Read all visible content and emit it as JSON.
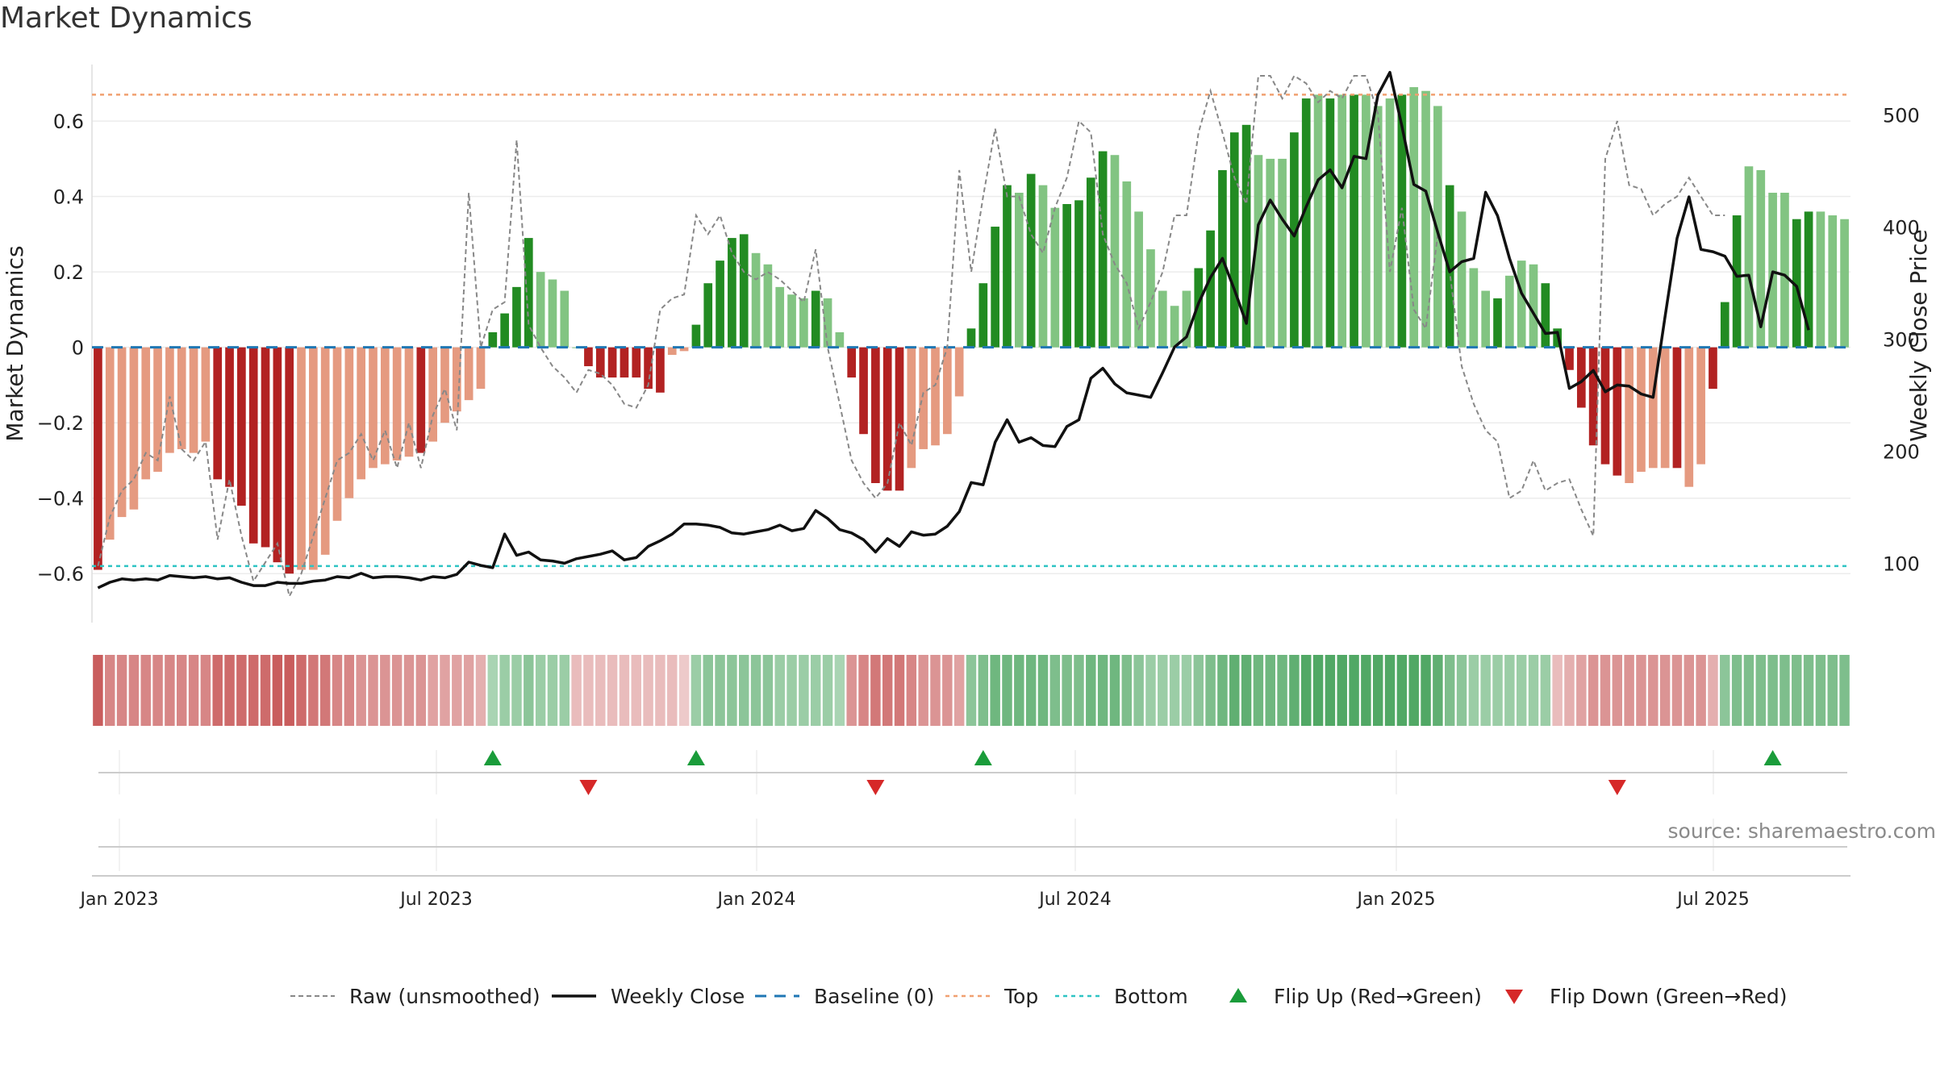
{
  "title": "Market Dynamics",
  "source": "source: sharemaestro.com",
  "colors": {
    "strong_green": "#228b22",
    "light_green": "#82c482",
    "strong_red": "#b22222",
    "light_red": "#e59a80",
    "close_line": "#111111",
    "raw_line": "#888888",
    "baseline": "#1f77b4",
    "top_line": "#f0a070",
    "bottom_line": "#2ec4c4",
    "flip_up": "#1a9c3a",
    "flip_down": "#d62828"
  },
  "chart_data": {
    "type": "bar",
    "ylabel": "Market Dynamics",
    "y2label": "Weekly Close Price",
    "ylim": [
      -0.73,
      0.75
    ],
    "y2lim": [
      47,
      545
    ],
    "yticks": [
      -0.6,
      -0.4,
      -0.2,
      0,
      0.2,
      0.4,
      0.6
    ],
    "ytick_labels": [
      "−0.6",
      "−0.4",
      "−0.2",
      "0",
      "0.2",
      "0.4",
      "0.6"
    ],
    "y2ticks": [
      100,
      200,
      300,
      400,
      500
    ],
    "y2tick_labels": [
      "100",
      "200",
      "300",
      "400",
      "500"
    ],
    "top_level": 0.67,
    "bottom_level": -0.58,
    "baseline_level": 0,
    "xticks": [
      "Jan 2023",
      "Jul 2023",
      "Jan 2024",
      "Jul 2024",
      "Jan 2025",
      "Jul 2025"
    ],
    "grid": "on",
    "legend_position": "bottom",
    "bar_values": [
      -0.59,
      -0.51,
      -0.45,
      -0.43,
      -0.35,
      -0.33,
      -0.28,
      -0.27,
      -0.28,
      -0.25,
      -0.35,
      -0.37,
      -0.42,
      -0.52,
      -0.53,
      -0.57,
      -0.6,
      -0.59,
      -0.59,
      -0.55,
      -0.46,
      -0.4,
      -0.35,
      -0.32,
      -0.31,
      -0.3,
      -0.29,
      -0.28,
      -0.25,
      -0.2,
      -0.17,
      -0.14,
      -0.11,
      0.04,
      0.09,
      0.16,
      0.29,
      0.2,
      0.18,
      0.15,
      0.0,
      -0.05,
      -0.08,
      -0.08,
      -0.08,
      -0.08,
      -0.11,
      -0.12,
      -0.02,
      -0.01,
      0.06,
      0.17,
      0.23,
      0.29,
      0.3,
      0.25,
      0.22,
      0.16,
      0.14,
      0.13,
      0.15,
      0.13,
      0.04,
      -0.08,
      -0.23,
      -0.36,
      -0.38,
      -0.38,
      -0.32,
      -0.27,
      -0.26,
      -0.23,
      -0.13,
      0.05,
      0.17,
      0.32,
      0.43,
      0.41,
      0.46,
      0.43,
      0.37,
      0.38,
      0.39,
      0.45,
      0.52,
      0.51,
      0.44,
      0.36,
      0.26,
      0.15,
      0.11,
      0.15,
      0.21,
      0.31,
      0.47,
      0.57,
      0.59,
      0.51,
      0.5,
      0.5,
      0.57,
      0.66,
      0.67,
      0.66,
      0.67,
      0.67,
      0.67,
      0.64,
      0.66,
      0.67,
      0.69,
      0.68,
      0.64,
      0.43,
      0.36,
      0.21,
      0.15,
      0.13,
      0.19,
      0.23,
      0.22,
      0.17,
      0.05,
      -0.06,
      -0.16,
      -0.26,
      -0.31,
      -0.34,
      -0.36,
      -0.33,
      -0.32,
      -0.32,
      -0.32,
      -0.37,
      -0.31,
      -0.11,
      0.12,
      0.35,
      0.48,
      0.47,
      0.41,
      0.41,
      0.34,
      0.36,
      0.36,
      0.35,
      0.34
    ],
    "bar_shade": [
      "strong",
      "light",
      "light",
      "light",
      "light",
      "light",
      "light",
      "light",
      "light",
      "light",
      "strong",
      "strong",
      "strong",
      "strong",
      "strong",
      "strong",
      "strong",
      "light",
      "light",
      "light",
      "light",
      "light",
      "light",
      "light",
      "light",
      "light",
      "light",
      "strong",
      "light",
      "light",
      "light",
      "light",
      "light",
      "strong",
      "strong",
      "strong",
      "strong",
      "light",
      "light",
      "light",
      "light",
      "strong",
      "strong",
      "strong",
      "strong",
      "strong",
      "strong",
      "strong",
      "light",
      "light",
      "strong",
      "strong",
      "strong",
      "strong",
      "strong",
      "light",
      "light",
      "light",
      "light",
      "light",
      "strong",
      "light",
      "light",
      "strong",
      "strong",
      "strong",
      "strong",
      "strong",
      "light",
      "light",
      "light",
      "light",
      "light",
      "strong",
      "strong",
      "strong",
      "strong",
      "light",
      "strong",
      "light",
      "light",
      "strong",
      "strong",
      "strong",
      "strong",
      "light",
      "light",
      "light",
      "light",
      "light",
      "light",
      "light",
      "strong",
      "strong",
      "strong",
      "strong",
      "strong",
      "light",
      "light",
      "light",
      "strong",
      "strong",
      "light",
      "strong",
      "light",
      "strong",
      "light",
      "light",
      "light",
      "strong",
      "light",
      "light",
      "light",
      "strong",
      "light",
      "light",
      "light",
      "strong",
      "light",
      "light",
      "light",
      "strong",
      "strong",
      "strong",
      "strong",
      "strong",
      "strong",
      "strong",
      "light",
      "light",
      "light",
      "light",
      "strong",
      "light",
      "light",
      "strong",
      "strong",
      "strong",
      "light",
      "light",
      "light",
      "light",
      "strong",
      "strong",
      "light",
      "light"
    ],
    "raw_values": [
      -0.58,
      -0.45,
      -0.38,
      -0.35,
      -0.28,
      -0.3,
      -0.13,
      -0.27,
      -0.3,
      -0.25,
      -0.51,
      -0.35,
      -0.5,
      -0.62,
      -0.57,
      -0.52,
      -0.66,
      -0.6,
      -0.5,
      -0.4,
      -0.3,
      -0.28,
      -0.23,
      -0.3,
      -0.22,
      -0.32,
      -0.2,
      -0.32,
      -0.18,
      -0.11,
      -0.22,
      0.41,
      0.0,
      0.1,
      0.12,
      0.55,
      0.06,
      0.0,
      -0.05,
      -0.08,
      -0.12,
      -0.06,
      -0.07,
      -0.1,
      -0.15,
      -0.16,
      -0.1,
      0.1,
      0.13,
      0.14,
      0.35,
      0.3,
      0.35,
      0.25,
      0.2,
      0.18,
      0.2,
      0.18,
      0.15,
      0.12,
      0.26,
      0.0,
      -0.15,
      -0.3,
      -0.36,
      -0.4,
      -0.36,
      -0.2,
      -0.26,
      -0.12,
      -0.1,
      0.0,
      0.47,
      0.2,
      0.4,
      0.58,
      0.4,
      0.4,
      0.3,
      0.25,
      0.37,
      0.45,
      0.6,
      0.57,
      0.3,
      0.22,
      0.17,
      0.05,
      0.12,
      0.2,
      0.35,
      0.35,
      0.57,
      0.68,
      0.57,
      0.45,
      0.38,
      0.72,
      0.72,
      0.66,
      0.72,
      0.7,
      0.65,
      0.68,
      0.66,
      0.72,
      0.72,
      0.62,
      0.2,
      0.37,
      0.1,
      0.05,
      0.3,
      0.2,
      -0.05,
      -0.15,
      -0.22,
      -0.25,
      -0.4,
      -0.38,
      -0.3,
      -0.38,
      -0.36,
      -0.35,
      -0.43,
      -0.5,
      0.5,
      0.6,
      0.43,
      0.42,
      0.35,
      0.38,
      0.4,
      0.45,
      0.4,
      0.35,
      0.35
    ],
    "close_values": [
      78,
      83,
      86,
      85,
      86,
      85,
      89,
      88,
      87,
      88,
      86,
      87,
      83,
      80,
      80,
      83,
      82,
      82,
      84,
      85,
      88,
      87,
      91,
      87,
      88,
      88,
      87,
      85,
      88,
      87,
      90,
      101,
      98,
      96,
      126,
      107,
      110,
      103,
      102,
      100,
      104,
      106,
      108,
      111,
      103,
      105,
      115,
      120,
      126,
      135,
      135,
      134,
      132,
      127,
      126,
      128,
      130,
      134,
      129,
      131,
      147,
      140,
      130,
      127,
      121,
      110,
      122,
      115,
      128,
      125,
      126,
      133,
      146,
      172,
      170,
      208,
      228,
      208,
      212,
      205,
      204,
      222,
      228,
      265,
      274,
      260,
      252,
      250,
      248,
      270,
      293,
      302,
      332,
      355,
      372,
      344,
      314,
      402,
      424,
      407,
      392,
      418,
      442,
      451,
      435,
      463,
      461,
      518,
      538,
      490,
      438,
      432,
      395,
      360,
      369,
      372,
      431,
      410,
      372,
      341,
      323,
      305,
      306,
      256,
      262,
      272,
      253,
      259,
      258,
      251,
      248,
      320,
      390,
      427,
      380,
      378,
      374,
      356,
      357,
      311,
      360,
      357,
      347,
      308
    ],
    "flip_up_index": [
      33,
      50,
      74,
      140
    ],
    "flip_down_index": [
      41,
      65,
      127
    ],
    "month_strip_shade": [
      -0.9,
      -0.6,
      -0.6,
      -0.6,
      -0.6,
      -0.6,
      -0.6,
      -0.6,
      -0.6,
      -0.6,
      -0.8,
      -0.8,
      -0.8,
      -0.8,
      -0.8,
      -0.9,
      -0.9,
      -0.8,
      -0.7,
      -0.7,
      -0.6,
      -0.6,
      -0.5,
      -0.5,
      -0.5,
      -0.5,
      -0.5,
      -0.5,
      -0.4,
      -0.4,
      -0.4,
      -0.4,
      -0.3,
      0.3,
      0.4,
      0.4,
      0.5,
      0.4,
      0.4,
      0.4,
      -0.2,
      -0.2,
      -0.2,
      -0.2,
      -0.2,
      -0.2,
      -0.2,
      -0.2,
      -0.2,
      -0.1,
      0.4,
      0.5,
      0.5,
      0.5,
      0.5,
      0.5,
      0.5,
      0.4,
      0.4,
      0.4,
      0.4,
      0.4,
      0.3,
      -0.5,
      -0.6,
      -0.7,
      -0.7,
      -0.7,
      -0.6,
      -0.5,
      -0.5,
      -0.5,
      -0.4,
      0.5,
      0.6,
      0.7,
      0.7,
      0.7,
      0.7,
      0.7,
      0.6,
      0.6,
      0.6,
      0.7,
      0.7,
      0.7,
      0.6,
      0.5,
      0.4,
      0.4,
      0.4,
      0.4,
      0.5,
      0.6,
      0.7,
      0.8,
      0.8,
      0.7,
      0.7,
      0.7,
      0.8,
      0.9,
      0.9,
      0.9,
      0.9,
      0.9,
      0.9,
      0.9,
      0.9,
      0.9,
      0.9,
      0.9,
      0.8,
      0.6,
      0.5,
      0.4,
      0.4,
      0.4,
      0.4,
      0.4,
      0.4,
      0.4,
      -0.2,
      -0.3,
      -0.4,
      -0.5,
      -0.5,
      -0.5,
      -0.5,
      -0.5,
      -0.5,
      -0.5,
      -0.5,
      -0.5,
      -0.5,
      -0.3,
      0.5,
      0.6,
      0.6,
      0.6,
      0.6,
      0.6,
      0.6,
      0.6,
      0.6,
      0.6,
      0.6
    ]
  },
  "legend": [
    {
      "key": "raw",
      "label": "Raw (unsmoothed)"
    },
    {
      "key": "close",
      "label": "Weekly Close"
    },
    {
      "key": "baseline",
      "label": "Baseline (0)"
    },
    {
      "key": "top",
      "label": "Top"
    },
    {
      "key": "bottom",
      "label": "Bottom"
    },
    {
      "key": "flipup",
      "label": "Flip Up (Red→Green)"
    },
    {
      "key": "flipdown",
      "label": "Flip Down (Green→Red)"
    }
  ]
}
